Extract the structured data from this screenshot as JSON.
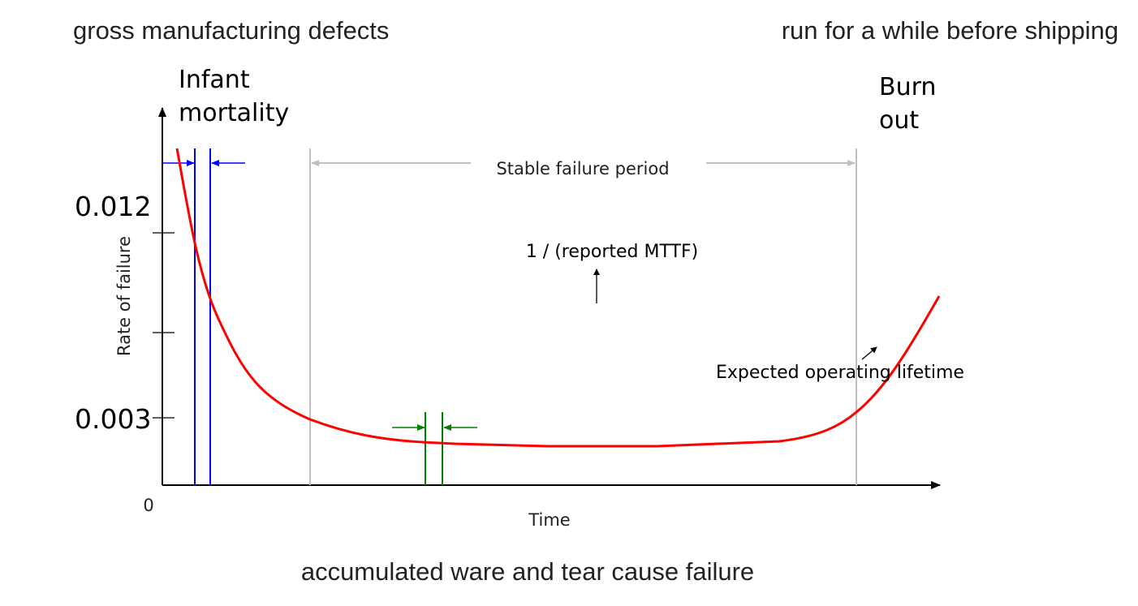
{
  "annotations": {
    "top_left": "gross manufacturing defects",
    "top_right": "run for a while before shipping",
    "bottom": "accumulated ware and tear cause failure"
  },
  "regions": {
    "infant_line1": "Infant",
    "infant_line2": "mortality",
    "burn_line1": "Burn",
    "burn_line2": "out",
    "stable": "Stable failure period",
    "mttf": "1 / (reported MTTF)",
    "lifetime": "Expected operating lifetime"
  },
  "axes": {
    "y_label": "Rate of failure",
    "x_label": "Time",
    "origin": "0",
    "y_tick_high": "0.012",
    "y_tick_low": "0.003"
  },
  "colors": {
    "curve": "#ff0000",
    "infant_markers": "#0000ff",
    "stable_markers": "#008000",
    "stable_bounds": "#c0c0c0",
    "axis": "#000000"
  }
}
